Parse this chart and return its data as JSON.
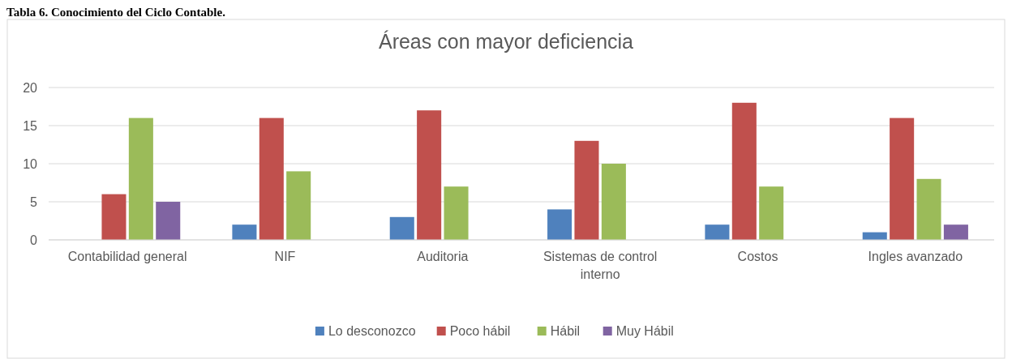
{
  "chart_data": {
    "type": "bar",
    "title": "Áreas con mayor deficiencia",
    "annotations": [
      "Tabla 6. Conocimiento del Ciclo Contable."
    ],
    "categories": [
      "Contabilidad general",
      "NIF",
      "Auditoria",
      "Sistemas de control interno",
      "Costos",
      "Ingles avanzado"
    ],
    "series": [
      {
        "name": "Lo desconozco",
        "color": "#4f81bd",
        "values": [
          0,
          2,
          3,
          4,
          2,
          1
        ]
      },
      {
        "name": "Poco hábil",
        "color": "#c0504d",
        "values": [
          6,
          16,
          17,
          13,
          18,
          16
        ]
      },
      {
        "name": "Hábil",
        "color": "#9bbb59",
        "values": [
          16,
          9,
          7,
          10,
          7,
          8
        ]
      },
      {
        "name": "Muy Hábil",
        "color": "#8064a2",
        "values": [
          5,
          0,
          0,
          0,
          0,
          2
        ]
      }
    ],
    "ylim": [
      0,
      20
    ],
    "yticks": [
      0,
      5,
      10,
      15,
      20
    ],
    "grid": "y",
    "legend": "bottom"
  }
}
